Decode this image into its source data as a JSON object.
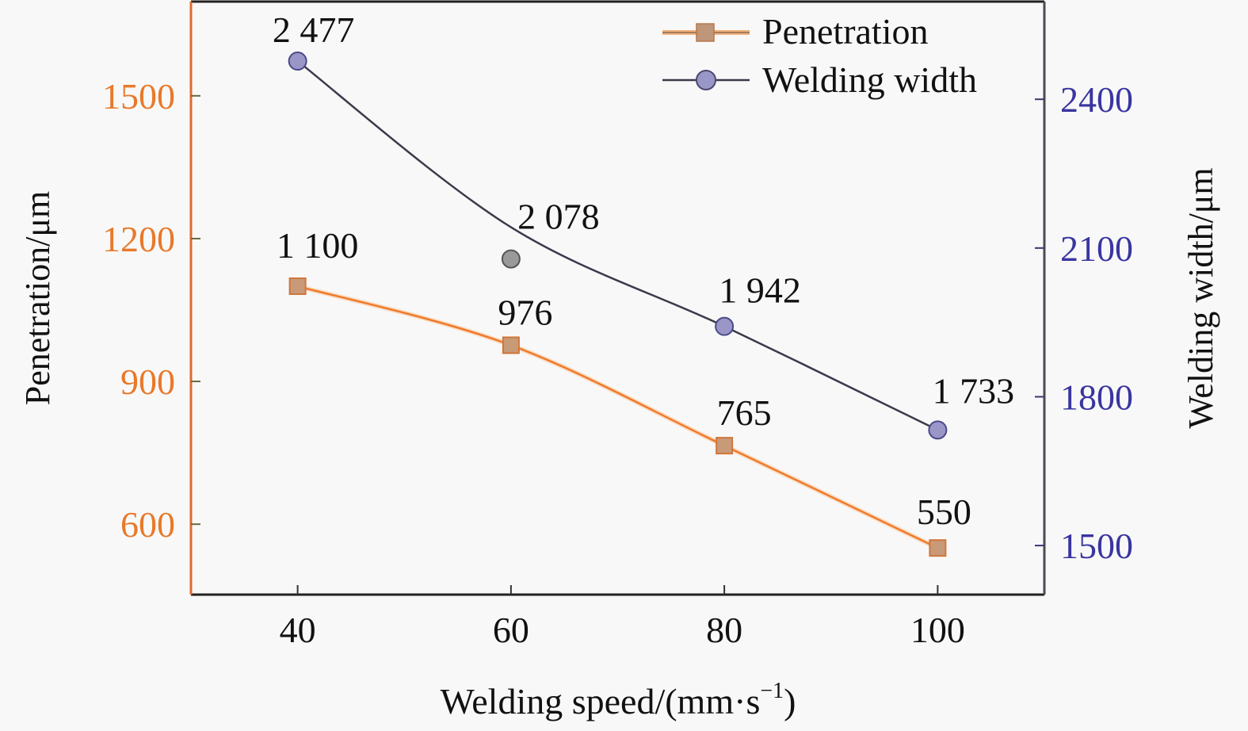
{
  "chart_data": {
    "type": "line",
    "title": "",
    "xlabel": "Welding speed/(mm·s",
    "xlabel_sup": "−1",
    "xlabel_close": ")",
    "ylabel_left": "Penetration/μm",
    "ylabel_right": "Welding width/μm",
    "x": [
      40,
      60,
      80,
      100
    ],
    "x_ticks": [
      "40",
      "60",
      "80",
      "100"
    ],
    "xlim": [
      30,
      110
    ],
    "y_left_ticks": [
      "600",
      "900",
      "1200",
      "1500"
    ],
    "y_left_tick_values": [
      600,
      900,
      1200,
      1500
    ],
    "ylim_left": [
      452,
      1698
    ],
    "y_right_ticks": [
      "1500",
      "1800",
      "2100",
      "2400"
    ],
    "y_right_tick_values": [
      1500,
      1800,
      2100,
      2400
    ],
    "ylim_right": [
      1401,
      2597
    ],
    "grid": false,
    "legend_position": "top-right",
    "series": [
      {
        "name": "Penetration",
        "axis": "left",
        "marker": "square",
        "values": [
          1100,
          976,
          765,
          550
        ],
        "labels": [
          "1 100",
          "976",
          "765",
          "550"
        ],
        "line_color": "#f07a2a",
        "marker_color": "#c89a78"
      },
      {
        "name": "Welding width",
        "axis": "right",
        "marker": "circle",
        "values": [
          2477,
          2078,
          1942,
          1733
        ],
        "labels": [
          "2 477",
          "2 078",
          "1 942",
          "1 733"
        ],
        "line_color": "#3a3a4a",
        "marker_color": "#9a96c8"
      }
    ],
    "colors": {
      "left_axis": "#e06a30",
      "left_tick_text": "#e8792a",
      "right_axis": "#4a4a55",
      "right_tick_text": "#3a35a0",
      "frame": "#222222",
      "text": "#111111"
    }
  }
}
